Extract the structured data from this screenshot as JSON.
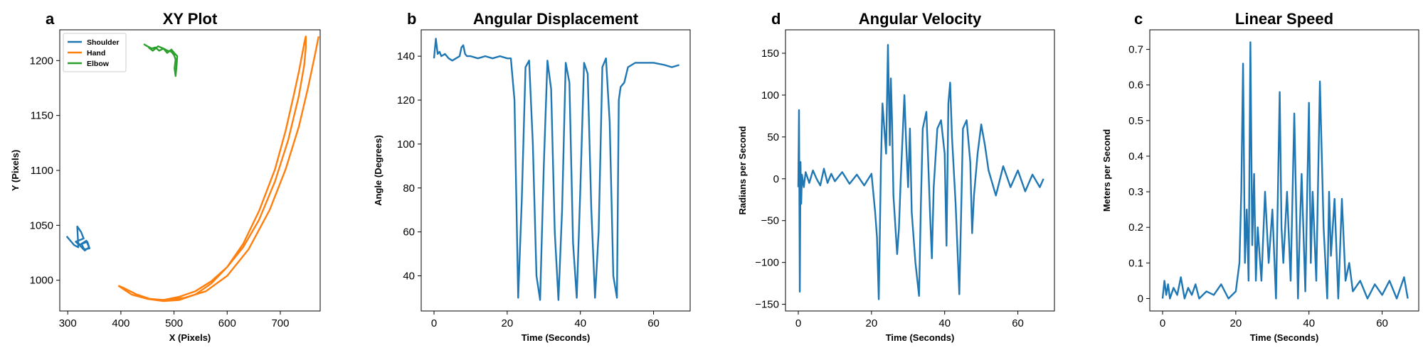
{
  "chart_data": [
    {
      "type": "line",
      "panel_letter": "a",
      "title": "XY Plot",
      "xlabel": "X (Pixels)",
      "ylabel": "Y (Pixels)",
      "xlim": [
        285,
        775
      ],
      "ylim": [
        972,
        1228
      ],
      "xticks": [
        300,
        400,
        500,
        600,
        700
      ],
      "yticks": [
        1000,
        1050,
        1100,
        1150,
        1200
      ],
      "legend": "top-left",
      "series": [
        {
          "name": "Shoulder",
          "color": "#1f77b4",
          "x": [
            298,
            305,
            312,
            320,
            318,
            325,
            330,
            315,
            322,
            335,
            340,
            332,
            326,
            337,
            341,
            330,
            324,
            320
          ],
          "y": [
            1040,
            1036,
            1032,
            1030,
            1049,
            1044,
            1038,
            1035,
            1032,
            1036,
            1030,
            1027,
            1033,
            1035,
            1029,
            1028,
            1031,
            1034
          ]
        },
        {
          "name": "Hand",
          "color": "#ff7f0e",
          "x": [
            395,
            420,
            450,
            480,
            510,
            540,
            570,
            600,
            630,
            660,
            690,
            710,
            725,
            735,
            742,
            746,
            748,
            748,
            745,
            735,
            715,
            690,
            660,
            630,
            600,
            570,
            540,
            510,
            480,
            455,
            430,
            405,
            395
          ],
          "y": [
            995,
            987,
            983,
            981,
            982,
            987,
            997,
            1012,
            1033,
            1063,
            1101,
            1136,
            1168,
            1190,
            1208,
            1218,
            1222,
            1212,
            1196,
            1168,
            1128,
            1090,
            1055,
            1030,
            1012,
            999,
            990,
            985,
            982,
            983,
            987,
            993,
            995
          ]
        },
        {
          "name": "Hand",
          "color": "#ff7f0e",
          "x": [
            480,
            520,
            560,
            600,
            640,
            680,
            710,
            735,
            752,
            763,
            768,
            772
          ],
          "y": [
            982,
            984,
            990,
            1004,
            1028,
            1064,
            1101,
            1140,
            1175,
            1200,
            1212,
            1222
          ]
        },
        {
          "name": "Elbow",
          "color": "#2ca02c",
          "x": [
            443,
            450,
            458,
            465,
            472,
            480,
            487,
            495,
            502,
            506,
            505,
            503,
            501,
            503,
            500,
            495,
            488,
            480,
            470,
            460,
            452
          ],
          "y": [
            1215,
            1213,
            1211,
            1212,
            1209,
            1211,
            1207,
            1210,
            1206,
            1204,
            1196,
            1186,
            1193,
            1201,
            1205,
            1208,
            1209,
            1211,
            1213,
            1209,
            1212
          ]
        }
      ],
      "legend_entries": [
        "Shoulder",
        "Hand",
        "Elbow"
      ]
    },
    {
      "type": "line",
      "panel_letter": "b",
      "title": "Angular Displacement",
      "xlabel": "Time (Seconds)",
      "ylabel": "Angle (Degrees)",
      "xlim": [
        -3.5,
        70
      ],
      "ylim": [
        24,
        152
      ],
      "xticks": [
        0,
        20,
        40,
        60
      ],
      "yticks": [
        40,
        60,
        80,
        100,
        120,
        140
      ],
      "series": [
        {
          "name": "",
          "color": "#1f77b4",
          "x": [
            0,
            0.5,
            1,
            1.5,
            2,
            3,
            4,
            5,
            6,
            7,
            7.5,
            8,
            8.5,
            9,
            10,
            12,
            14,
            16,
            18,
            20,
            21,
            22,
            23,
            24,
            25,
            26,
            27,
            28,
            29,
            30,
            31,
            32,
            33,
            34,
            35,
            36,
            37,
            38,
            39,
            40,
            41,
            42,
            43,
            44,
            45,
            46,
            47,
            48,
            49,
            50,
            50.5,
            51,
            52,
            53,
            55,
            57,
            60,
            63,
            65,
            67
          ],
          "y": [
            139,
            148,
            141,
            142,
            140,
            141,
            139,
            138,
            139,
            140,
            144,
            145,
            141,
            140,
            140,
            139,
            140,
            139,
            140,
            139,
            139,
            120,
            30,
            75,
            135,
            138,
            100,
            40,
            29,
            90,
            138,
            125,
            60,
            29,
            70,
            137,
            128,
            55,
            30,
            80,
            137,
            132,
            70,
            30,
            60,
            135,
            139,
            110,
            40,
            30,
            120,
            126,
            128,
            135,
            137,
            137,
            137,
            136,
            135,
            136
          ]
        }
      ]
    },
    {
      "type": "line",
      "panel_letter": "d",
      "title": "Angular Velocity",
      "xlabel": "Time (Seconds)",
      "ylabel": "Radians per Second",
      "xlim": [
        -3.5,
        70
      ],
      "ylim": [
        -158,
        178
      ],
      "xticks": [
        0,
        20,
        40,
        60
      ],
      "yticks": [
        -150,
        -100,
        -50,
        0,
        50,
        100,
        150
      ],
      "series": [
        {
          "name": "",
          "color": "#1f77b4",
          "x": [
            0,
            0.2,
            0.4,
            0.6,
            0.8,
            1.0,
            1.5,
            2,
            3,
            4,
            5,
            6,
            7,
            8,
            9,
            10,
            12,
            14,
            16,
            18,
            20,
            21,
            21.5,
            22,
            22.3,
            22.6,
            23,
            23.5,
            24,
            24.5,
            25,
            25.3,
            25.6,
            26,
            27,
            27.5,
            28,
            29,
            29.5,
            30,
            30.5,
            31,
            32,
            33,
            33.5,
            34,
            35,
            35.5,
            36,
            36.5,
            37,
            38,
            39,
            40,
            40.5,
            41,
            41.5,
            42,
            43,
            44,
            44.5,
            45,
            46,
            47,
            47.5,
            48,
            49,
            50,
            51,
            52,
            54,
            56,
            58,
            60,
            62,
            64,
            66,
            67
          ],
          "y": [
            -10,
            82,
            -135,
            20,
            -30,
            5,
            -10,
            8,
            -5,
            10,
            0,
            -8,
            12,
            -5,
            6,
            -3,
            8,
            -6,
            5,
            -8,
            6,
            -40,
            -70,
            -144,
            -60,
            20,
            90,
            60,
            30,
            160,
            40,
            120,
            70,
            -20,
            -90,
            -60,
            0,
            100,
            40,
            -10,
            60,
            -40,
            -100,
            -140,
            -30,
            60,
            80,
            20,
            -40,
            -95,
            -10,
            60,
            70,
            30,
            -80,
            90,
            115,
            50,
            -30,
            -138,
            -40,
            60,
            70,
            20,
            -65,
            -20,
            30,
            65,
            40,
            10,
            -20,
            15,
            -10,
            10,
            -15,
            5,
            -10,
            0
          ]
        }
      ]
    },
    {
      "type": "line",
      "panel_letter": "c",
      "title": "Linear Speed",
      "xlabel": "Time (Seconds)",
      "ylabel": "Meters per Second",
      "xlim": [
        -3.5,
        70
      ],
      "ylim": [
        -0.035,
        0.755
      ],
      "xticks": [
        0,
        20,
        40,
        60
      ],
      "yticks": [
        0.0,
        0.1,
        0.2,
        0.3,
        0.4,
        0.5,
        0.6,
        0.7
      ],
      "series": [
        {
          "name": "",
          "color": "#1f77b4",
          "x": [
            0,
            0.5,
            1,
            1.5,
            2,
            3,
            4,
            5,
            6,
            7,
            8,
            9,
            10,
            12,
            14,
            16,
            18,
            20,
            21,
            21.5,
            22,
            22.5,
            23,
            23.5,
            24,
            24.5,
            25,
            25.5,
            26,
            27,
            28,
            29,
            30,
            31,
            32,
            32.5,
            33,
            34,
            35,
            36,
            37,
            37.5,
            38,
            39,
            40,
            40.5,
            41,
            42,
            43,
            44,
            45,
            45.5,
            46,
            47,
            48,
            49,
            50,
            51,
            52,
            54,
            56,
            58,
            60,
            62,
            64,
            66,
            67
          ],
          "y": [
            0.0,
            0.05,
            0.01,
            0.04,
            0.0,
            0.03,
            0.01,
            0.06,
            0.0,
            0.03,
            0.01,
            0.04,
            0.0,
            0.02,
            0.01,
            0.04,
            0.0,
            0.02,
            0.1,
            0.3,
            0.66,
            0.1,
            0.25,
            0.05,
            0.72,
            0.15,
            0.35,
            0.05,
            0.2,
            0.05,
            0.3,
            0.1,
            0.25,
            0.0,
            0.58,
            0.2,
            0.1,
            0.3,
            0.05,
            0.52,
            0.0,
            0.2,
            0.35,
            0.02,
            0.55,
            0.1,
            0.3,
            0.05,
            0.61,
            0.2,
            0.0,
            0.3,
            0.12,
            0.28,
            0.0,
            0.28,
            0.05,
            0.1,
            0.02,
            0.05,
            0.0,
            0.04,
            0.01,
            0.05,
            0.0,
            0.06,
            0.0
          ]
        }
      ]
    }
  ]
}
